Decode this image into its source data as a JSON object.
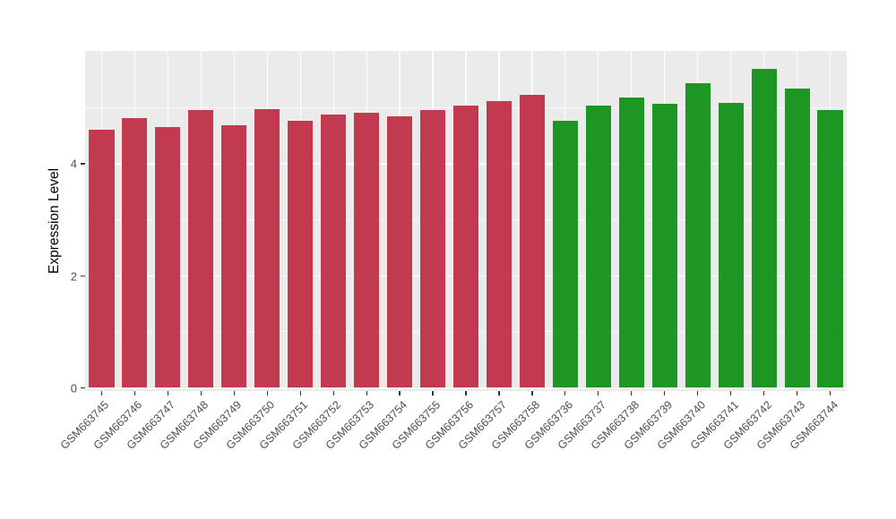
{
  "chart_data": {
    "type": "bar",
    "title": "",
    "xlabel": "",
    "ylabel": "Expression Level",
    "ylim": [
      0,
      6
    ],
    "yticks": [
      0,
      2,
      4
    ],
    "yticks_minor": [
      1,
      3,
      5
    ],
    "legend": "none",
    "panel_background": "#EBEBEB",
    "grid_color": "#FFFFFF",
    "axis_text_color": "#4D4D4D",
    "bar_colors_by_group": {
      "red_group": "#C23A50",
      "green_group": "#1E9623"
    },
    "categories": [
      "GSM663745",
      "GSM663746",
      "GSM663747",
      "GSM663748",
      "GSM663749",
      "GSM663750",
      "GSM663751",
      "GSM663752",
      "GSM663753",
      "GSM663754",
      "GSM663755",
      "GSM663756",
      "GSM663757",
      "GSM663758",
      "GSM663736",
      "GSM663737",
      "GSM663738",
      "GSM663739",
      "GSM663740",
      "GSM663741",
      "GSM663742",
      "GSM663743",
      "GSM663744"
    ],
    "values": [
      4.6,
      4.8,
      4.65,
      4.95,
      4.67,
      4.97,
      4.75,
      4.87,
      4.9,
      4.83,
      4.95,
      5.02,
      5.1,
      5.22,
      4.75,
      5.03,
      5.17,
      5.06,
      5.42,
      5.07,
      5.68,
      5.33,
      4.95
    ],
    "bar_groups": [
      "red_group",
      "red_group",
      "red_group",
      "red_group",
      "red_group",
      "red_group",
      "red_group",
      "red_group",
      "red_group",
      "red_group",
      "red_group",
      "red_group",
      "red_group",
      "red_group",
      "green_group",
      "green_group",
      "green_group",
      "green_group",
      "green_group",
      "green_group",
      "green_group",
      "green_group",
      "green_group"
    ]
  }
}
